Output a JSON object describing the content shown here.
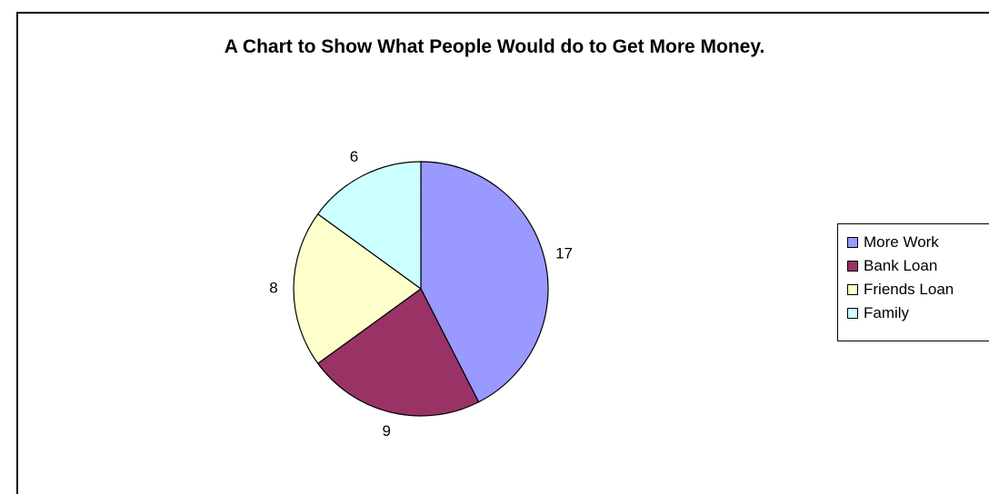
{
  "chart_data": {
    "type": "pie",
    "title": "A Chart to Show What People Would do to Get More Money.",
    "categories": [
      "More Work",
      "Bank Loan",
      "Friends Loan",
      "Family"
    ],
    "values": [
      17,
      9,
      8,
      6
    ],
    "colors": [
      "#9999ff",
      "#993366",
      "#ffffcc",
      "#ccffff"
    ],
    "legend_position": "right",
    "data_labels": "values"
  },
  "legend": {
    "items": [
      {
        "label": "More Work",
        "color": "#9999ff"
      },
      {
        "label": "Bank Loan",
        "color": "#993366"
      },
      {
        "label": "Friends Loan",
        "color": "#ffffcc"
      },
      {
        "label": "Family",
        "color": "#ccffff"
      }
    ]
  }
}
